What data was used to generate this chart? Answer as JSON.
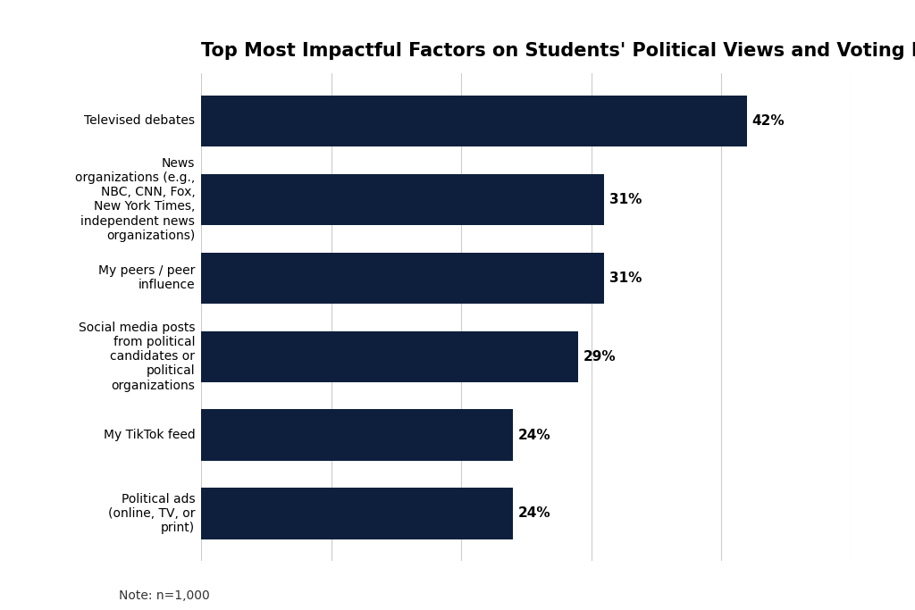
{
  "title": "Top Most Impactful Factors on Students' Political Views and Voting Behavior",
  "categories": [
    "Political ads\n(online, TV, or\nprint)",
    "My TikTok feed",
    "Social media posts\nfrom political\ncandidates or\npolitical\norganizations",
    "My peers / peer\ninfluence",
    "News\norganizations (e.g.,\nNBC, CNN, Fox,\nNew York Times,\nindependent news\norganizations)",
    "Televised debates"
  ],
  "values": [
    24,
    24,
    29,
    31,
    31,
    42
  ],
  "bar_color": "#0d1f3c",
  "label_color": "#000000",
  "background_color": "#ffffff",
  "grid_color": "#cccccc",
  "title_fontsize": 15,
  "label_fontsize": 10,
  "value_fontsize": 11,
  "note": "Note: n=1,000",
  "xlim": [
    0,
    48
  ],
  "xtick_values": [
    0,
    10,
    20,
    30,
    40,
    50
  ]
}
